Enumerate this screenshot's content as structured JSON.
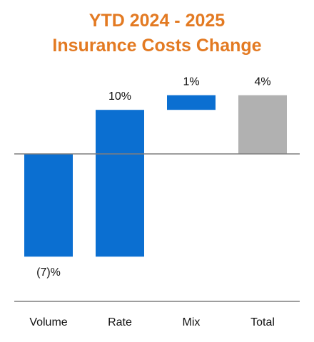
{
  "chart_data": {
    "type": "bar",
    "subtype": "waterfall",
    "title": "YTD 2024 - 2025",
    "subtitle": "Insurance Costs Change",
    "xlabel": "",
    "ylabel": "",
    "categories": [
      "Volume",
      "Rate",
      "Mix",
      "Total"
    ],
    "values": [
      -7,
      10,
      1,
      4
    ],
    "value_labels": [
      "(7)%",
      "10%",
      "1%",
      "4%"
    ],
    "bar_kinds": [
      "change",
      "change",
      "change",
      "total"
    ],
    "y_unit": "%",
    "ylim": [
      -10,
      5
    ],
    "grid": false,
    "legend": "none",
    "colors": {
      "title": "#E37A22",
      "change_bar": "#0B6FD1",
      "total_bar": "#B1B1B1",
      "axis": "#7F7F7F",
      "text": "#111111"
    }
  }
}
